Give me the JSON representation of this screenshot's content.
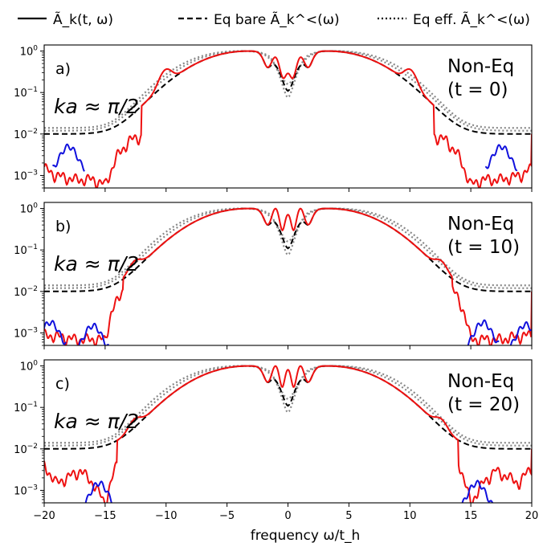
{
  "legend": [
    {
      "style": "solid",
      "label": "Ã_k(t, ω)"
    },
    {
      "style": "dashed",
      "label": "Eq bare Ã_k^<(ω)"
    },
    {
      "style": "dotted",
      "label": "Eq eff. Ã_k^<(ω)"
    }
  ],
  "colors": {
    "positive": "#ee1111",
    "negative": "#1111dd",
    "bare": "#000000",
    "eff": "#888888"
  },
  "chart_data": [
    {
      "type": "line",
      "panel": "a)",
      "annotation": "ka ≈ π/2",
      "state": "Non-Eq",
      "time": "(t = 0)",
      "xlim": [
        -20,
        20
      ],
      "ylim": [
        0.0005,
        1.4
      ],
      "yscale": "log",
      "xlabel": "frequency ω/t_h",
      "red_peaks": [
        [
          -10,
          0.2
        ],
        [
          -1,
          0.26
        ],
        [
          0,
          0.18
        ],
        [
          1,
          0.26
        ],
        [
          10,
          0.2
        ]
      ],
      "blue_bumps": [
        [
          -18,
          0.005
        ],
        [
          17.5,
          0.005
        ]
      ],
      "red_low_tail": [
        [
          -20,
          0.0015
        ],
        [
          -19,
          0.001
        ],
        [
          -17.5,
          0.0008
        ],
        [
          -16,
          0.0008
        ],
        [
          -15,
          0.0006
        ],
        [
          -14,
          0.003
        ],
        [
          -13,
          0.007
        ],
        [
          -12,
          0.009
        ]
      ]
    },
    {
      "type": "line",
      "panel": "b)",
      "annotation": "ka ≈ π/2",
      "state": "Non-Eq",
      "time": "(t = 10)",
      "xlim": [
        -20,
        20
      ],
      "ylim": [
        0.0005,
        1.4
      ],
      "yscale": "log",
      "xlabel": "frequency ω/t_h",
      "red_peaks": [
        [
          -12.5,
          0.022
        ],
        [
          -1,
          0.55
        ],
        [
          0,
          0.6
        ],
        [
          1,
          0.55
        ],
        [
          12.5,
          0.022
        ]
      ],
      "blue_bumps": [
        [
          -19.5,
          0.0018
        ],
        [
          -16,
          0.0015
        ],
        [
          16,
          0.0018
        ],
        [
          19.5,
          0.0016
        ]
      ],
      "red_low_tail": [
        [
          -20,
          0.0009
        ],
        [
          -18.5,
          0.0008
        ],
        [
          -17.5,
          0.0007
        ],
        [
          -15,
          0.0007
        ],
        [
          -14.5,
          0.003
        ],
        [
          -13.5,
          0.012
        ]
      ]
    },
    {
      "type": "line",
      "panel": "c)",
      "annotation": "ka ≈ π/2",
      "state": "Non-Eq",
      "time": "(t = 20)",
      "xlim": [
        -20,
        20
      ],
      "ylim": [
        0.0005,
        1.4
      ],
      "yscale": "log",
      "xlabel": "frequency ω/t_h",
      "red_peaks": [
        [
          -12.5,
          0.02
        ],
        [
          -1,
          0.55
        ],
        [
          0,
          0.7
        ],
        [
          1,
          0.55
        ],
        [
          12.5,
          0.02
        ]
      ],
      "blue_bumps": [
        [
          -15.5,
          0.0015
        ],
        [
          15.5,
          0.0015
        ]
      ],
      "red_low_tail": [
        [
          -20,
          0.004
        ],
        [
          -19,
          0.0015
        ],
        [
          -17,
          0.003
        ],
        [
          -16,
          0.0015
        ],
        [
          -15,
          0.0005
        ],
        [
          -14,
          0.005
        ]
      ]
    }
  ],
  "xticks": [
    "−20",
    "−15",
    "−10",
    "−5",
    "0",
    "5",
    "10",
    "15",
    "20"
  ],
  "xtick_values": [
    -20,
    -15,
    -10,
    -5,
    0,
    5,
    10,
    15,
    20
  ],
  "yticks": [
    {
      "value": 1,
      "base": "10",
      "exp": "0"
    },
    {
      "value": 0.1,
      "base": "10",
      "exp": "−1"
    },
    {
      "value": 0.01,
      "base": "10",
      "exp": "−2"
    },
    {
      "value": 0.001,
      "base": "10",
      "exp": "−3"
    }
  ]
}
